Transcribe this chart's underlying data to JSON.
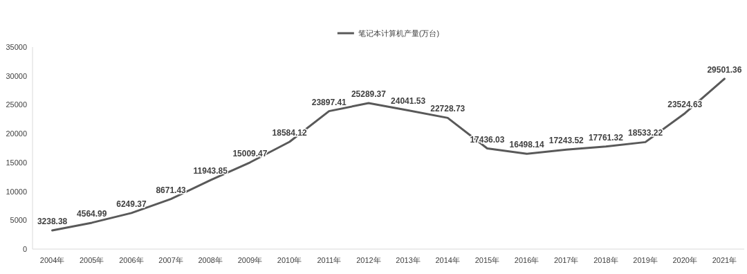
{
  "chart_data": {
    "type": "line",
    "categories": [
      "2004年",
      "2005年",
      "2006年",
      "2007年",
      "2008年",
      "2009年",
      "2010年",
      "2011年",
      "2012年",
      "2013年",
      "2014年",
      "2015年",
      "2016年",
      "2017年",
      "2018年",
      "2019年",
      "2020年",
      "2021年"
    ],
    "series": [
      {
        "name": "笔记本计算机产量(万台)",
        "color": "#595959",
        "values": [
          3238.38,
          4564.99,
          6249.37,
          8671.43,
          11943.85,
          15009.47,
          18584.12,
          23897.41,
          25289.37,
          24041.53,
          22728.73,
          17436.03,
          16498.14,
          17243.52,
          17761.32,
          18533.22,
          23524.63,
          29501.36
        ]
      }
    ],
    "ylim": [
      0,
      35000
    ],
    "yticks": [
      0,
      5000,
      10000,
      15000,
      20000,
      25000,
      30000,
      35000
    ],
    "data_labels": true,
    "legend": "top",
    "grid": false,
    "marker": "none",
    "line_style": "solid"
  }
}
